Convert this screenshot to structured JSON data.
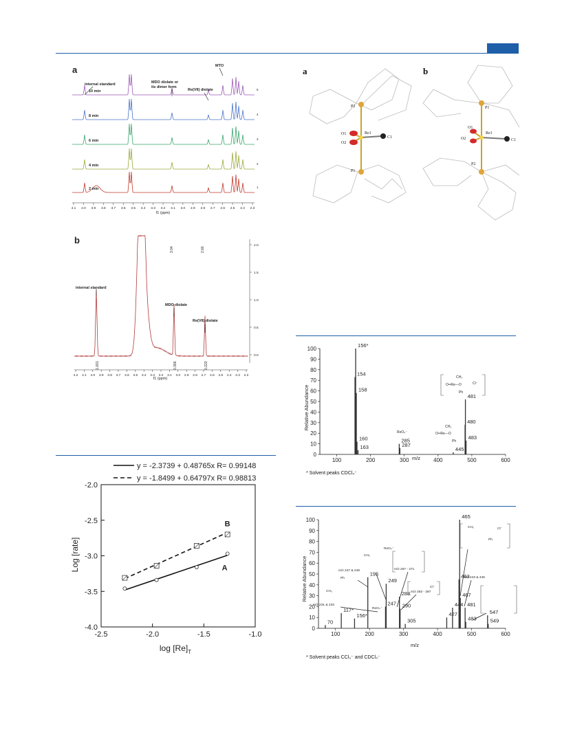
{
  "fig_nmr": {
    "panel_a": {
      "label": "a",
      "annotations": {
        "internal_standard": "internal standard",
        "mdo_line1": "MDO diolate or",
        "mdo_line2": "its dimer form",
        "re_diolate": "Re(VII) diolate",
        "mto": "MTO"
      },
      "traces": [
        {
          "label": "10 min",
          "color": "#9b59b6",
          "idx": "5"
        },
        {
          "label": "8 min",
          "color": "#4a72c9",
          "idx": "4"
        },
        {
          "label": "6 min",
          "color": "#3aa56c",
          "idx": "3"
        },
        {
          "label": "4 min",
          "color": "#9aa83a",
          "idx": "2"
        },
        {
          "label": "2 min",
          "color": "#c0392b",
          "idx": "1"
        }
      ],
      "ticks": [
        "4.1",
        "4.0",
        "3.9",
        "3.8",
        "3.7",
        "3.6",
        "3.5",
        "3.4",
        "3.3",
        "3.2",
        "3.1",
        "3.0",
        "2.9",
        "2.8",
        "2.7",
        "2.6",
        "2.5",
        "2.4",
        "2.3"
      ],
      "xlabel": "f1 (ppm)"
    },
    "panel_b": {
      "label": "b",
      "annotations": {
        "internal_standard": "internal standard",
        "mdo": "MDO diolate",
        "re": "Re(VII) diolate"
      },
      "top_labels": [
        "3.04",
        "2.66"
      ],
      "integrals": [
        "1.001",
        "0.366",
        "0.223"
      ],
      "ticks": [
        "4.2",
        "4.1",
        "4.0",
        "3.9",
        "3.8",
        "3.7",
        "3.6",
        "3.5",
        "3.4",
        "3.3",
        "3.2",
        "3.1",
        "3.0",
        "2.9",
        "2.8",
        "2.7",
        "2.6",
        "2.5",
        "2.4",
        "2.3",
        "2.2"
      ],
      "yticks": [
        "2.0",
        "1.5",
        "1.0",
        "0.5",
        "0.0"
      ],
      "xlabel": "f1 (ppm)"
    }
  },
  "fig_xray": {
    "label_a": "a",
    "label_b": "b",
    "atoms_a": {
      "p2": "P2",
      "o1": "O1",
      "o2": "O2",
      "re": "Re1",
      "c1": "C1",
      "p1": "P1"
    },
    "atoms_b": {
      "p1": "P1",
      "o1": "O1",
      "o2": "O2",
      "re": "Re1",
      "c1": "C1",
      "p2": "P2"
    }
  },
  "fig_loglog": {
    "legend": [
      {
        "text": "y = -2.3739 + 0.48765x   R= 0.99148"
      },
      {
        "text": "y = -1.8499 + 0.64797x   R= 0.98813"
      }
    ],
    "series_labels": [
      "A",
      "B"
    ],
    "chart_data": {
      "type": "scatter",
      "xlabel": "log [Re]",
      "xlabel_sub": "T",
      "ylabel": "Log [rate]",
      "xlim": [
        -2.5,
        -1.0
      ],
      "ylim": [
        -4.0,
        -2.0
      ],
      "xticks": [
        "-2.5",
        "-2.0",
        "-1.5",
        "-1.0"
      ],
      "yticks": [
        "-2.0",
        "-2.5",
        "-3.0",
        "-3.5",
        "-4.0"
      ],
      "series": [
        {
          "name": "A",
          "x": [
            -2.27,
            -1.96,
            -1.57,
            -1.27
          ],
          "y": [
            -3.46,
            -3.34,
            -3.16,
            -2.97
          ]
        },
        {
          "name": "B",
          "x": [
            -2.27,
            -1.96,
            -1.57,
            -1.27
          ],
          "y": [
            -3.31,
            -3.14,
            -2.86,
            -2.7
          ]
        }
      ]
    }
  },
  "fig_ms1": {
    "footnote": "* Solvent peaks CDCl₄⁻",
    "structure_labels": [
      "ReO₄⁻",
      "CH₃",
      "Cl⁻",
      "Ph"
    ],
    "chart_data": {
      "type": "bar",
      "xlabel": "m/z",
      "ylabel": "Relative Abundance",
      "xlim": [
        50,
        600
      ],
      "ylim": [
        0,
        100
      ],
      "xticks": [
        "100",
        "200",
        "300",
        "400",
        "500",
        "600"
      ],
      "yticks": [
        "0",
        "10",
        "20",
        "30",
        "40",
        "50",
        "60",
        "70",
        "80",
        "90",
        "100"
      ],
      "peaks": [
        {
          "mz": 154,
          "value": 73,
          "label": "154"
        },
        {
          "mz": 156,
          "value": 100,
          "label": "156*"
        },
        {
          "mz": 158,
          "value": 58,
          "label": "158"
        },
        {
          "mz": 160,
          "value": 12,
          "label": "160"
        },
        {
          "mz": 163,
          "value": 4,
          "label": "163"
        },
        {
          "mz": 285,
          "value": 10,
          "label": "285"
        },
        {
          "mz": 287,
          "value": 6,
          "label": "287"
        },
        {
          "mz": 445,
          "value": 2,
          "label": "445"
        },
        {
          "mz": 480,
          "value": 28,
          "label": "480"
        },
        {
          "mz": 481,
          "value": 52,
          "label": "481"
        },
        {
          "mz": 483,
          "value": 13,
          "label": "483"
        }
      ]
    }
  },
  "fig_ms2": {
    "footnote": "* Solvent peaks CCl₃⁻ and CDCl₄⁻",
    "annotations": [
      "m/z 247 & 249",
      "m/z 267 - 271",
      "m/z 231 & 233",
      "m/z 283 - 287",
      "m/z 443 & 445",
      "ReO₄⁻",
      "CH₃",
      "Cl⁻",
      "Ph"
    ],
    "chart_data": {
      "type": "bar",
      "xlabel": "m/z",
      "ylabel": "Relative Abundance",
      "xlim": [
        50,
        600
      ],
      "ylim": [
        0,
        100
      ],
      "xticks": [
        "100",
        "200",
        "300",
        "400",
        "500",
        "600"
      ],
      "yticks": [
        "0",
        "10",
        "20",
        "30",
        "40",
        "50",
        "60",
        "70",
        "80",
        "90",
        "100"
      ],
      "peaks": [
        {
          "mz": 70,
          "value": 3,
          "label": "70"
        },
        {
          "mz": 117,
          "value": 14,
          "label": "117*"
        },
        {
          "mz": 156,
          "value": 9,
          "label": "156*"
        },
        {
          "mz": 195,
          "value": 47,
          "label": "195"
        },
        {
          "mz": 247,
          "value": 20,
          "label": "247"
        },
        {
          "mz": 249,
          "value": 41,
          "label": "249"
        },
        {
          "mz": 288,
          "value": 29,
          "label": "288"
        },
        {
          "mz": 290,
          "value": 18,
          "label": "290"
        },
        {
          "mz": 305,
          "value": 4,
          "label": "305"
        },
        {
          "mz": 427,
          "value": 10,
          "label": "427"
        },
        {
          "mz": 444,
          "value": 19,
          "label": "444"
        },
        {
          "mz": 463,
          "value": 45,
          "label": "463"
        },
        {
          "mz": 465,
          "value": 100,
          "label": "465"
        },
        {
          "mz": 467,
          "value": 28,
          "label": "467"
        },
        {
          "mz": 481,
          "value": 19,
          "label": "481"
        },
        {
          "mz": 483,
          "value": 6,
          "label": "483"
        },
        {
          "mz": 547,
          "value": 12,
          "label": "547"
        },
        {
          "mz": 549,
          "value": 4,
          "label": "549"
        }
      ]
    }
  }
}
